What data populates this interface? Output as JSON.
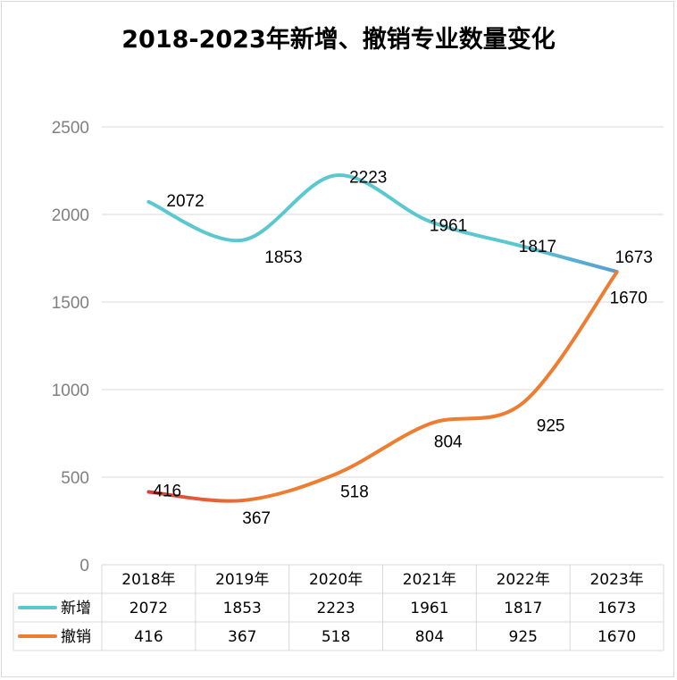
{
  "chart_data": {
    "type": "line",
    "title": "2018-2023年新增、撤销专业数量变化",
    "categories": [
      "2018年",
      "2019年",
      "2020年",
      "2021年",
      "2022年",
      "2023年"
    ],
    "series": [
      {
        "name": "新增",
        "values": [
          2072,
          1853,
          2223,
          1961,
          1817,
          1673
        ],
        "color": "#5bc8d0",
        "color_end": "#5b9bd5"
      },
      {
        "name": "撤销",
        "values": [
          416,
          367,
          518,
          804,
          925,
          1670
        ],
        "color": "#ed7d31",
        "color_start": "#e03c3c"
      }
    ],
    "ylim": [
      0,
      2500
    ],
    "yticks": [
      0,
      500,
      1000,
      1500,
      2000,
      2500
    ],
    "grid": true,
    "legend": "data-table"
  }
}
